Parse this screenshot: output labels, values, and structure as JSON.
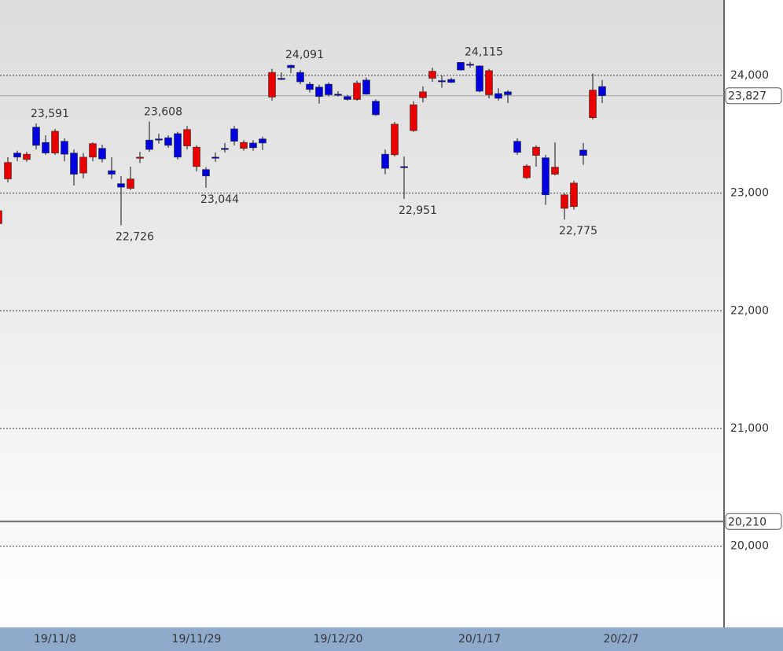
{
  "chart_data": {
    "type": "candlestick",
    "ylim": [
      19310,
      24640
    ],
    "yticks": [
      {
        "value": 20000,
        "label": "20,000"
      },
      {
        "value": 21000,
        "label": "21,000"
      },
      {
        "value": 22000,
        "label": "22,000"
      },
      {
        "value": 23000,
        "label": "23,000"
      },
      {
        "value": 24000,
        "label": "24,000"
      }
    ],
    "grid": true,
    "up_color": "#e60000",
    "down_color": "#0000dd",
    "categories": [
      null,
      null,
      null,
      null,
      null,
      null,
      "19/11/8",
      null,
      null,
      null,
      null,
      null,
      null,
      null,
      null,
      null,
      null,
      null,
      null,
      null,
      null,
      "19/11/29",
      null,
      null,
      null,
      null,
      null,
      null,
      null,
      null,
      null,
      null,
      null,
      null,
      null,
      null,
      "19/12/20",
      null,
      null,
      null,
      null,
      null,
      null,
      null,
      null,
      null,
      null,
      null,
      null,
      null,
      null,
      "20/1/17",
      null,
      null,
      null,
      null,
      null,
      null,
      null,
      null,
      null,
      null,
      null,
      null,
      null,
      null,
      "20/2/7"
    ],
    "open": [
      22740,
      23120,
      23340,
      23285,
      23560,
      23430,
      23340,
      23440,
      23340,
      23170,
      23305,
      23380,
      23190,
      23080,
      23040,
      23300,
      23450,
      23460,
      23470,
      23505,
      23400,
      23225,
      23200,
      23305,
      23380,
      23545,
      23380,
      23425,
      23460,
      23815,
      23975,
      24085,
      24025,
      23925,
      23900,
      23925,
      23840,
      23820,
      23795,
      23960,
      23780,
      23330,
      23325,
      23225,
      23530,
      23810,
      23975,
      23955,
      23965,
      24110,
      24095,
      24080,
      23835,
      23845,
      23860,
      23440,
      23130,
      23320,
      23300,
      23160,
      22870,
      22885,
      23365,
      23640,
      23905,
      null,
      null
    ],
    "high": [
      22860,
      23305,
      23360,
      23350,
      23591,
      23490,
      23545,
      23465,
      23370,
      23340,
      23430,
      23410,
      23305,
      23145,
      23225,
      23350,
      23608,
      23505,
      23490,
      23520,
      23570,
      23405,
      23220,
      23345,
      23425,
      23570,
      23450,
      23450,
      23480,
      24055,
      24025,
      24091,
      24045,
      23945,
      23920,
      23940,
      23865,
      23835,
      23955,
      23980,
      23795,
      23370,
      23605,
      23310,
      23780,
      23905,
      24065,
      24000,
      23980,
      24110,
      24115,
      24085,
      24055,
      23890,
      23875,
      23465,
      23245,
      23405,
      23325,
      23430,
      23000,
      23105,
      23425,
      24015,
      23960,
      null,
      null
    ],
    "low": [
      22730,
      23090,
      23270,
      23265,
      23370,
      23325,
      23325,
      23270,
      23065,
      23125,
      23270,
      23260,
      23120,
      22726,
      23025,
      23255,
      23350,
      23420,
      23385,
      23285,
      23370,
      23185,
      23044,
      23265,
      23345,
      23405,
      23360,
      23360,
      23365,
      23785,
      23960,
      24020,
      23925,
      23855,
      23760,
      23820,
      23820,
      23785,
      23785,
      23835,
      23655,
      23160,
      23310,
      22951,
      23520,
      23770,
      23945,
      23895,
      23935,
      24040,
      24065,
      23855,
      23805,
      23785,
      23765,
      23325,
      23120,
      23225,
      22900,
      23150,
      22775,
      22860,
      23240,
      23625,
      23765,
      null,
      null
    ],
    "close": [
      22850,
      23260,
      23305,
      23330,
      23405,
      23340,
      23525,
      23330,
      23160,
      23305,
      23420,
      23290,
      23160,
      23050,
      23120,
      23305,
      23370,
      23455,
      23405,
      23305,
      23540,
      23390,
      23145,
      23300,
      23375,
      23440,
      23430,
      23385,
      23425,
      24025,
      23970,
      24065,
      23945,
      23880,
      23820,
      23835,
      23835,
      23795,
      23935,
      23840,
      23665,
      23210,
      23585,
      23220,
      23750,
      23860,
      24035,
      23950,
      23940,
      24045,
      24090,
      23865,
      24040,
      23805,
      23835,
      23345,
      23230,
      23390,
      22985,
      23220,
      22985,
      23085,
      23320,
      23875,
      23827,
      null,
      null
    ],
    "annotations": [
      {
        "text": "23,591",
        "value": 23591
      },
      {
        "text": "22,726",
        "value": 22726
      },
      {
        "text": "23,608",
        "value": 23608
      },
      {
        "text": "23,044",
        "value": 23044
      },
      {
        "text": "24,091",
        "value": 24091
      },
      {
        "text": "22,951",
        "value": 22951
      },
      {
        "text": "24,115",
        "value": 24115
      },
      {
        "text": "22,775",
        "value": 22775
      }
    ],
    "price_lines": [
      {
        "value": 23827,
        "label": "23,827",
        "color": "#a0a0a0"
      },
      {
        "value": 20210,
        "label": "20,210",
        "color": "#707070"
      }
    ]
  }
}
